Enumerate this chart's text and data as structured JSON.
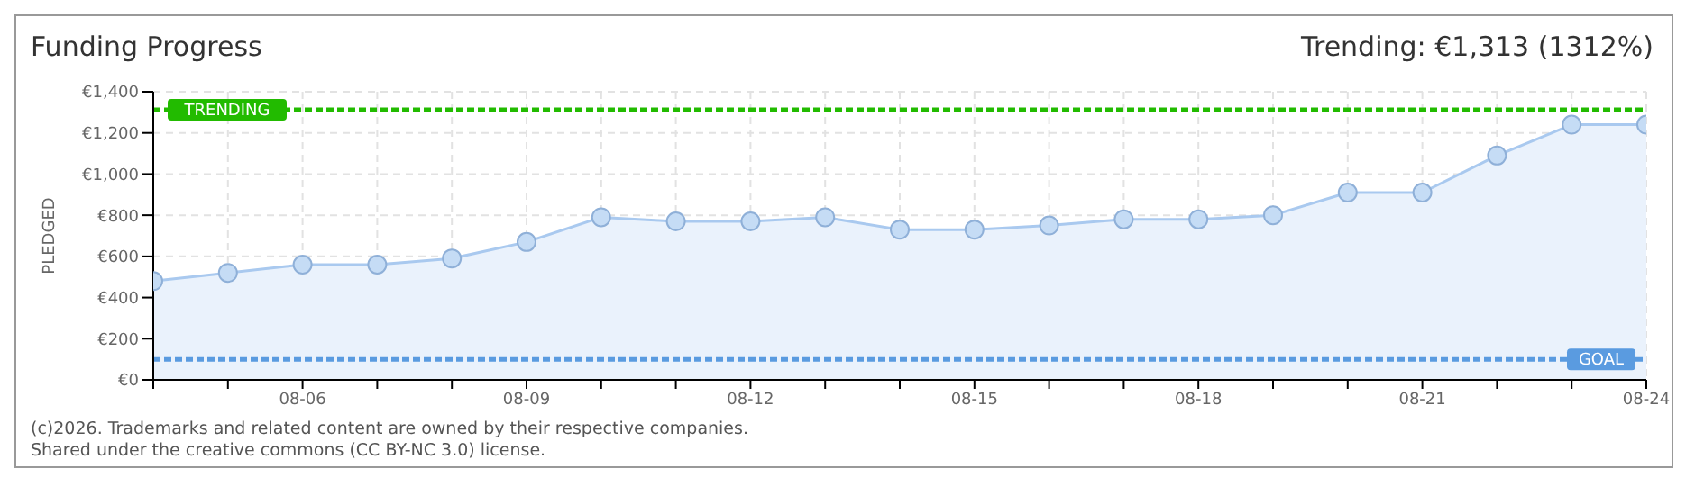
{
  "chart_data": {
    "type": "area",
    "title": "Funding Progress",
    "annotations": [
      "Trending:  €1,313 (1312%)",
      "(c)2026. Trademarks and related content are owned by their respective companies.",
      "Shared under the creative commons (CC BY-NC 3.0) license."
    ],
    "ylabel": "PLEDGED",
    "x": [
      "--08-04",
      "--08-05",
      "--08-06",
      "--08-07",
      "--08-08",
      "--08-09",
      "--08-10",
      "--08-11",
      "--08-12",
      "--08-13",
      "--08-14",
      "--08-15",
      "--08-16",
      "--08-17",
      "--08-18",
      "--08-19",
      "--08-20",
      "--08-21",
      "--08-22",
      "--08-23",
      "--08-24"
    ],
    "series": [
      {
        "color": "#a9c9ef",
        "values": [
          480,
          520,
          560,
          560,
          590,
          670,
          790,
          770,
          770,
          790,
          730,
          730,
          750,
          780,
          780,
          800,
          910,
          910,
          1090,
          1240,
          1240
        ]
      }
    ],
    "xlim": [
      "--08-04",
      "--08-24"
    ],
    "xticks": [
      {
        "value": "--08-04",
        "label": null
      },
      {
        "value": "--08-05",
        "label": null
      },
      {
        "value": "--08-06",
        "label": "08-06"
      },
      {
        "value": "--08-07",
        "label": null
      },
      {
        "value": "--08-08",
        "label": null
      },
      {
        "value": "--08-09",
        "label": "08-09"
      },
      {
        "value": "--08-10",
        "label": null
      },
      {
        "value": "--08-11",
        "label": null
      },
      {
        "value": "--08-12",
        "label": "08-12"
      },
      {
        "value": "--08-13",
        "label": null
      },
      {
        "value": "--08-14",
        "label": null
      },
      {
        "value": "--08-15",
        "label": "08-15"
      },
      {
        "value": "--08-16",
        "label": null
      },
      {
        "value": "--08-17",
        "label": null
      },
      {
        "value": "--08-18",
        "label": "08-18"
      },
      {
        "value": "--08-19",
        "label": null
      },
      {
        "value": "--08-20",
        "label": null
      },
      {
        "value": "--08-21",
        "label": "08-21"
      },
      {
        "value": "--08-22",
        "label": null
      },
      {
        "value": "--08-23",
        "label": null
      },
      {
        "value": "--08-24",
        "label": "08-24"
      }
    ],
    "ylim": [
      0,
      1400
    ],
    "yticks": [
      {
        "value": 0,
        "label": "€0"
      },
      {
        "value": 200,
        "label": "€200"
      },
      {
        "value": 400,
        "label": "€400"
      },
      {
        "value": 600,
        "label": "€600"
      },
      {
        "value": 800,
        "label": "€800"
      },
      {
        "value": 1000,
        "label": "€1,000"
      },
      {
        "value": 1200,
        "label": "€1,200"
      },
      {
        "value": 1400,
        "label": "€1,400"
      }
    ],
    "ref_lines": [
      {
        "axis": "y",
        "value": 1313,
        "label": "TRENDING",
        "color": "#22bb00",
        "line_style": "dashed"
      },
      {
        "axis": "y",
        "value": 100,
        "label": "GOAL",
        "color": "#5a9be0",
        "line_style": "dashed"
      }
    ],
    "grid": true,
    "marker": "circle",
    "legend": false
  }
}
